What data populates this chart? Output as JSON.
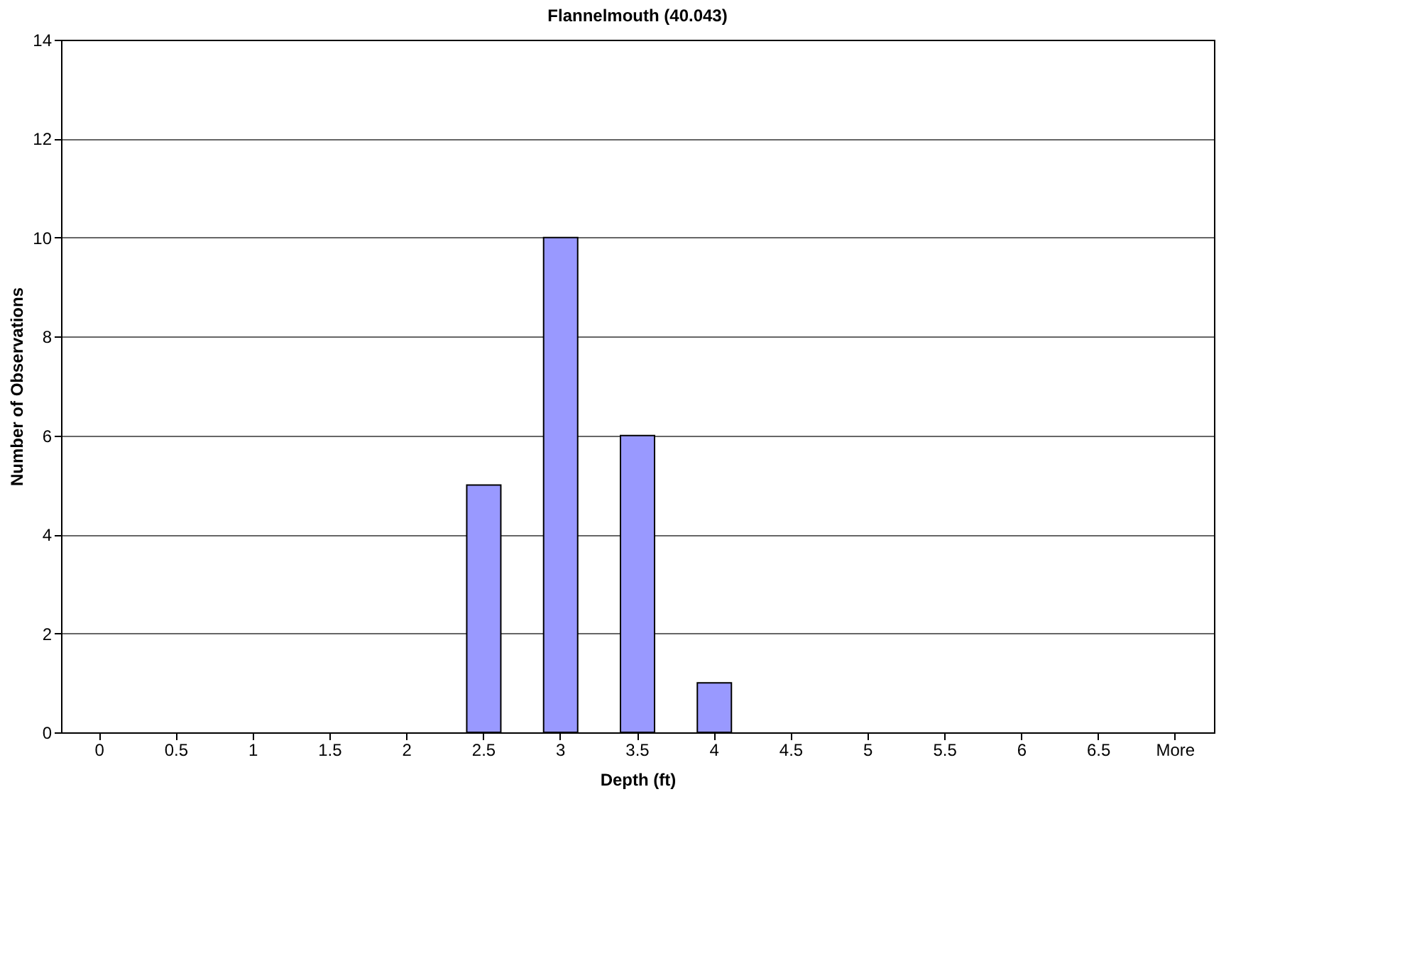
{
  "chart_data": {
    "type": "bar",
    "title": "Flannelmouth  (40.043)",
    "xlabel": "Depth  (ft)",
    "ylabel": "Number of Observations",
    "categories": [
      "0",
      "0.5",
      "1",
      "1.5",
      "2",
      "2.5",
      "3",
      "3.5",
      "4",
      "4.5",
      "5",
      "5.5",
      "6",
      "6.5",
      "More"
    ],
    "values": [
      0,
      0,
      0,
      0,
      0,
      5,
      10,
      6,
      1,
      0,
      0,
      0,
      0,
      0,
      0
    ],
    "color": "#9999ff",
    "ylim": [
      0,
      14
    ],
    "yticks": [
      0,
      2,
      4,
      6,
      8,
      10,
      12,
      14
    ],
    "grid": "y"
  }
}
